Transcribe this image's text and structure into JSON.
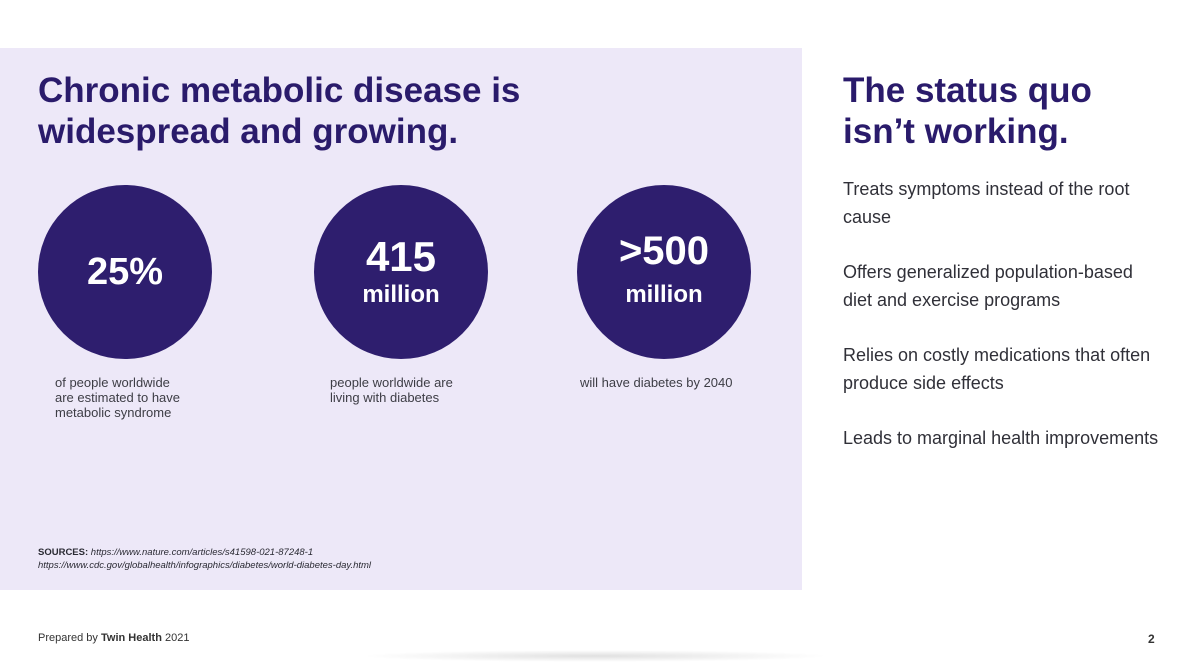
{
  "left": {
    "title_line1": "Chronic metabolic disease is",
    "title_line2": "widespread and growing.",
    "stats": [
      {
        "value": "25%",
        "unit": "",
        "desc_lines": [
          "of people worldwide",
          "are estimated to have",
          "metabolic syndrome"
        ]
      },
      {
        "value": "415",
        "unit": "million",
        "desc_lines": [
          "people worldwide are",
          "living with diabetes"
        ]
      },
      {
        "value": ">500",
        "unit": "million",
        "desc_lines": [
          "will have diabetes by 2040"
        ]
      }
    ],
    "sources": {
      "label": "SOURCES:",
      "url1": "https://www.nature.com/articles/s41598-021-87248-1",
      "url2": "https://www.cdc.gov/globalhealth/infographics/diabetes/world-diabetes-day.html"
    }
  },
  "right": {
    "title_line1": "The status quo",
    "title_line2": "isn’t working.",
    "items": [
      "Treats symptoms instead of the root cause",
      "Offers generalized population-based diet and exercise programs",
      "Relies on costly medications that often produce side effects",
      "Leads to marginal health improvements"
    ]
  },
  "footer": {
    "prefix": "Prepared by",
    "org": "Twin Health",
    "year": "2021",
    "page": "2"
  },
  "colors": {
    "panel_bg": "#ede8f8",
    "circle": "#2e1e6e",
    "heading": "#2a1b6b"
  }
}
